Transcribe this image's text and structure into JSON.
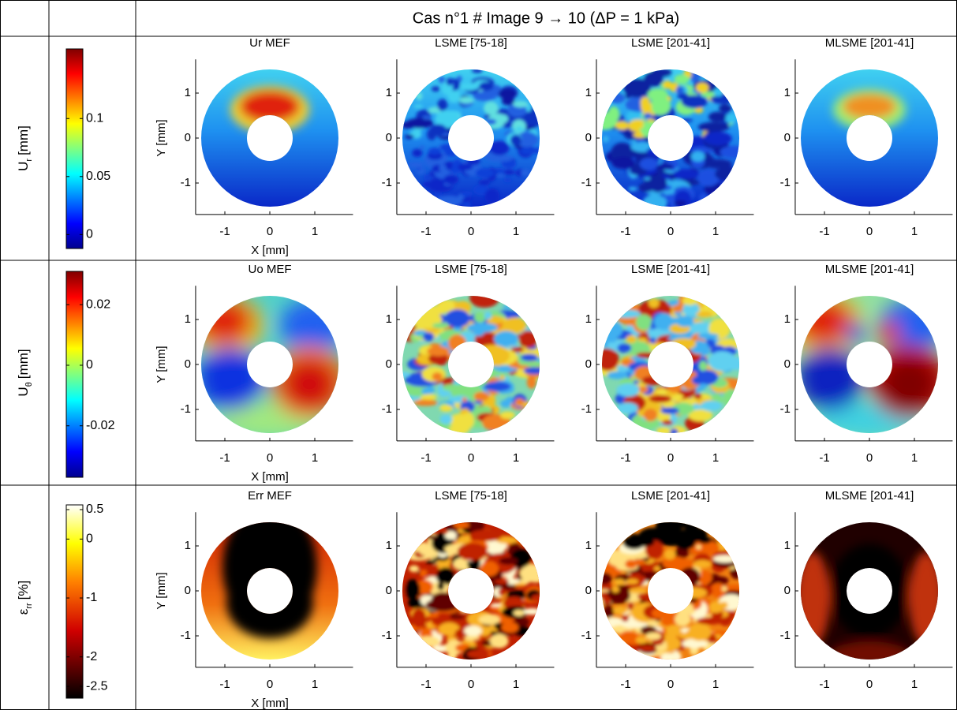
{
  "header": {
    "title": "Cas n°1 # Image 9 → 10 (ΔP = 1 kPa)"
  },
  "axes": {
    "xlabel": "X [mm]",
    "ylabel": "Y [mm]",
    "xlim": [
      -1.65,
      1.85
    ],
    "ylim": [
      -1.7,
      1.75
    ],
    "xticks": [
      -1,
      0,
      1
    ],
    "yticks": [
      -1,
      0,
      1
    ]
  },
  "rows": [
    {
      "label": {
        "main": "U",
        "sub": "r",
        "unit": "[mm]"
      },
      "colorbar": {
        "colormap": "jet",
        "clim": [
          -0.012,
          0.16
        ],
        "ticks": [
          0,
          0.05,
          0.1
        ]
      },
      "panels": [
        {
          "title": "Ur MEF"
        },
        {
          "title": "LSME [75-18]"
        },
        {
          "title": "LSME [201-41]"
        },
        {
          "title": "MLSME [201-41]"
        }
      ]
    },
    {
      "label": {
        "main": "U",
        "sub": "θ",
        "unit": "[mm]"
      },
      "colorbar": {
        "colormap": "jet",
        "clim": [
          -0.037,
          0.031
        ],
        "ticks": [
          -0.02,
          0,
          0.02
        ]
      },
      "panels": [
        {
          "title": "Uo MEF"
        },
        {
          "title": "LSME [75-18]"
        },
        {
          "title": "LSME [201-41]"
        },
        {
          "title": "MLSME [201-41]"
        }
      ]
    },
    {
      "label": {
        "main": "ε",
        "sub": "rr",
        "unit": "[%]"
      },
      "colorbar": {
        "colormap": "hot",
        "clim": [
          -2.7,
          0.58
        ],
        "ticks": [
          -2.5,
          -2,
          -1,
          0,
          0.5
        ]
      },
      "panels": [
        {
          "title": "Err MEF"
        },
        {
          "title": "LSME [75-18]"
        },
        {
          "title": "LSME [201-41]"
        },
        {
          "title": "MLSME [201-41]"
        }
      ]
    }
  ]
}
